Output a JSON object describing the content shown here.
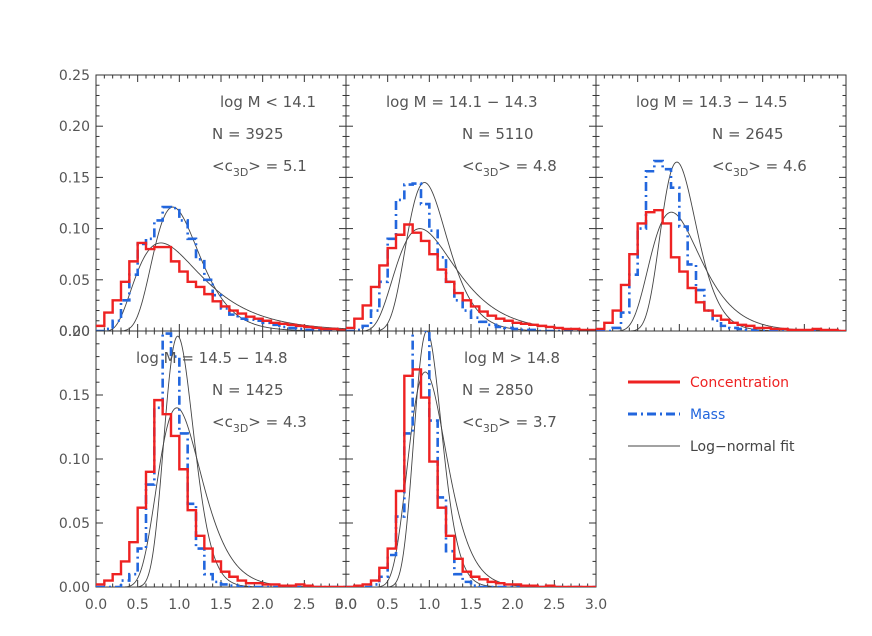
{
  "colors": {
    "concentration": "#ee2222",
    "mass": "#2266dd",
    "fit": "#444444",
    "axis": "#333333",
    "text": "#555555"
  },
  "legend": {
    "entries": [
      {
        "label": "Concentration",
        "color": "#ee2222",
        "style": "solid-thick"
      },
      {
        "label": "Mass",
        "color": "#2266dd",
        "style": "dash-dot"
      },
      {
        "label": "Log−normal fit",
        "color": "#444444",
        "style": "thin"
      }
    ]
  },
  "chart_data": [
    {
      "type": "line",
      "panel": "top-left",
      "annotations": [
        "log M < 14.1",
        "N = 3925",
        "5.1"
      ],
      "mean_c": "5.1",
      "xlim": [
        0,
        3
      ],
      "ylim": [
        0,
        0.25
      ],
      "x_bins": [
        0.1,
        0.2,
        0.3,
        0.4,
        0.5,
        0.6,
        0.7,
        0.8,
        0.9,
        1.0,
        1.1,
        1.2,
        1.3,
        1.4,
        1.5,
        1.6,
        1.7,
        1.8,
        1.9,
        2.0,
        2.1,
        2.2,
        2.3,
        2.4,
        2.5,
        2.6,
        2.7,
        2.8,
        2.9,
        3.0
      ],
      "series": [
        {
          "name": "Concentration",
          "values": [
            0.005,
            0.018,
            0.03,
            0.048,
            0.068,
            0.086,
            0.08,
            0.082,
            0.082,
            0.068,
            0.058,
            0.048,
            0.043,
            0.036,
            0.029,
            0.024,
            0.02,
            0.017,
            0.014,
            0.012,
            0.01,
            0.008,
            0.007,
            0.006,
            0.005,
            0.004,
            0.003,
            0.002,
            0.002,
            0.001
          ]
        },
        {
          "name": "Mass",
          "values": [
            0.0,
            0.002,
            0.01,
            0.03,
            0.055,
            0.085,
            0.09,
            0.108,
            0.121,
            0.12,
            0.108,
            0.09,
            0.07,
            0.05,
            0.035,
            0.022,
            0.016,
            0.012,
            0.011,
            0.01,
            0.008,
            0.006,
            0.004,
            0.003,
            0.002,
            0.001,
            0.001,
            0.0,
            0.0,
            0.0
          ]
        }
      ],
      "fits": [
        {
          "name": "Log-normal fit",
          "mu": -0.08,
          "sigma": 0.3,
          "amp": 0.121
        },
        {
          "name": "Log-normal fit",
          "mu": -0.25,
          "sigma": 0.5,
          "amp": 0.086
        }
      ]
    },
    {
      "type": "line",
      "panel": "top-middle",
      "annotations": [
        "log M = 14.1 − 14.3",
        "N = 5110",
        "4.8"
      ],
      "mean_c": "4.8",
      "xlim": [
        0,
        3
      ],
      "ylim": [
        0,
        0.25
      ],
      "x_bins": [
        0.1,
        0.2,
        0.3,
        0.4,
        0.5,
        0.6,
        0.7,
        0.8,
        0.9,
        1.0,
        1.1,
        1.2,
        1.3,
        1.4,
        1.5,
        1.6,
        1.7,
        1.8,
        1.9,
        2.0,
        2.1,
        2.2,
        2.3,
        2.4,
        2.5,
        2.6,
        2.7,
        2.8,
        2.9,
        3.0
      ],
      "series": [
        {
          "name": "Concentration",
          "values": [
            0.003,
            0.012,
            0.025,
            0.043,
            0.064,
            0.081,
            0.094,
            0.104,
            0.096,
            0.088,
            0.075,
            0.06,
            0.048,
            0.037,
            0.03,
            0.024,
            0.019,
            0.015,
            0.012,
            0.01,
            0.008,
            0.007,
            0.006,
            0.005,
            0.004,
            0.003,
            0.002,
            0.002,
            0.001,
            0.001
          ]
        },
        {
          "name": "Mass",
          "values": [
            0.0,
            0.001,
            0.005,
            0.02,
            0.048,
            0.09,
            0.128,
            0.143,
            0.144,
            0.124,
            0.098,
            0.072,
            0.048,
            0.03,
            0.02,
            0.013,
            0.009,
            0.006,
            0.004,
            0.003,
            0.002,
            0.001,
            0.001,
            0.0,
            0.0,
            0.0,
            0.0,
            0.0,
            0.0,
            0.0
          ]
        }
      ],
      "fits": [
        {
          "name": "Log-normal fit",
          "mu": -0.06,
          "sigma": 0.26,
          "amp": 0.145
        },
        {
          "name": "Log-normal fit",
          "mu": -0.12,
          "sigma": 0.4,
          "amp": 0.1
        }
      ]
    },
    {
      "type": "line",
      "panel": "top-right",
      "annotations": [
        "log M = 14.3 − 14.5",
        "N = 2645",
        "4.6"
      ],
      "mean_c": "4.6",
      "xlim": [
        0,
        3
      ],
      "ylim": [
        0,
        0.25
      ],
      "x_bins": [
        0.1,
        0.2,
        0.3,
        0.4,
        0.5,
        0.6,
        0.7,
        0.8,
        0.9,
        1.0,
        1.1,
        1.2,
        1.3,
        1.4,
        1.5,
        1.6,
        1.7,
        1.8,
        1.9,
        2.0,
        2.1,
        2.2,
        2.3,
        2.4,
        2.5,
        2.6,
        2.7,
        2.8,
        2.9,
        3.0
      ],
      "series": [
        {
          "name": "Concentration",
          "values": [
            0.002,
            0.008,
            0.02,
            0.045,
            0.075,
            0.105,
            0.116,
            0.118,
            0.105,
            0.072,
            0.058,
            0.042,
            0.028,
            0.02,
            0.015,
            0.011,
            0.008,
            0.006,
            0.005,
            0.003,
            0.003,
            0.002,
            0.002,
            0.001,
            0.001,
            0.001,
            0.002,
            0.001,
            0.001,
            0.0
          ]
        },
        {
          "name": "Mass",
          "values": [
            0.0,
            0.0,
            0.003,
            0.018,
            0.055,
            0.1,
            0.156,
            0.166,
            0.158,
            0.14,
            0.102,
            0.065,
            0.04,
            0.02,
            0.01,
            0.005,
            0.003,
            0.002,
            0.001,
            0.0,
            0.0,
            0.0,
            0.0,
            0.0,
            0.0,
            0.0,
            0.0,
            0.0,
            0.0,
            0.0
          ]
        }
      ],
      "fits": [
        {
          "name": "Log-normal fit",
          "mu": -0.03,
          "sigma": 0.22,
          "amp": 0.165
        },
        {
          "name": "Log-normal fit",
          "mu": -0.1,
          "sigma": 0.33,
          "amp": 0.116
        }
      ]
    },
    {
      "type": "line",
      "panel": "bottom-left",
      "annotations": [
        "log M = 14.5 − 14.8",
        "N = 1425",
        "4.3"
      ],
      "mean_c": "4.3",
      "xlim": [
        0,
        3
      ],
      "ylim": [
        0,
        0.2
      ],
      "x_bins": [
        0.1,
        0.2,
        0.3,
        0.4,
        0.5,
        0.6,
        0.7,
        0.8,
        0.9,
        1.0,
        1.1,
        1.2,
        1.3,
        1.4,
        1.5,
        1.6,
        1.7,
        1.8,
        1.9,
        2.0,
        2.1,
        2.2,
        2.3,
        2.4,
        2.5,
        2.6,
        2.7,
        2.8,
        2.9,
        3.0
      ],
      "series": [
        {
          "name": "Concentration",
          "values": [
            0.002,
            0.005,
            0.01,
            0.02,
            0.035,
            0.062,
            0.09,
            0.146,
            0.135,
            0.118,
            0.092,
            0.06,
            0.04,
            0.03,
            0.02,
            0.012,
            0.008,
            0.005,
            0.003,
            0.003,
            0.002,
            0.002,
            0.001,
            0.001,
            0.002,
            0.001,
            0.0,
            0.0,
            0.0,
            0.0
          ]
        },
        {
          "name": "Mass",
          "values": [
            0.0,
            0.0,
            0.0,
            0.005,
            0.01,
            0.03,
            0.08,
            0.14,
            0.198,
            0.18,
            0.12,
            0.065,
            0.03,
            0.01,
            0.004,
            0.002,
            0.001,
            0.0,
            0.0,
            0.0,
            0.0,
            0.0,
            0.0,
            0.0,
            0.0,
            0.0,
            0.0,
            0.0,
            0.0,
            0.0
          ]
        }
      ],
      "fits": [
        {
          "name": "Log-normal fit",
          "mu": -0.02,
          "sigma": 0.18,
          "amp": 0.196
        },
        {
          "name": "Log-normal fit",
          "mu": -0.03,
          "sigma": 0.27,
          "amp": 0.14
        }
      ]
    },
    {
      "type": "line",
      "panel": "bottom-middle",
      "annotations": [
        "log M > 14.8",
        "N = 2850",
        "3.7"
      ],
      "mean_c": "3.7",
      "xlim": [
        0,
        3
      ],
      "ylim": [
        0,
        0.2
      ],
      "x_bins": [
        0.1,
        0.2,
        0.3,
        0.4,
        0.5,
        0.6,
        0.7,
        0.8,
        0.9,
        1.0,
        1.1,
        1.2,
        1.3,
        1.4,
        1.5,
        1.6,
        1.7,
        1.8,
        1.9,
        2.0,
        2.1,
        2.2,
        2.3,
        2.4,
        2.5,
        2.6,
        2.7,
        2.8,
        2.9,
        3.0
      ],
      "series": [
        {
          "name": "Concentration",
          "values": [
            0.0,
            0.001,
            0.002,
            0.005,
            0.015,
            0.03,
            0.075,
            0.165,
            0.17,
            0.148,
            0.098,
            0.062,
            0.04,
            0.022,
            0.012,
            0.008,
            0.006,
            0.004,
            0.003,
            0.002,
            0.002,
            0.001,
            0.001,
            0.0,
            0.001,
            0.0,
            0.0,
            0.0,
            0.0,
            0.0
          ]
        },
        {
          "name": "Mass",
          "values": [
            0.0,
            0.0,
            0.0,
            0.002,
            0.008,
            0.025,
            0.055,
            0.12,
            0.208,
            0.2,
            0.13,
            0.07,
            0.028,
            0.01,
            0.004,
            0.001,
            0.0,
            0.0,
            0.0,
            0.0,
            0.0,
            0.0,
            0.0,
            0.0,
            0.0,
            0.0,
            0.0,
            0.0,
            0.0,
            0.0
          ]
        }
      ],
      "fits": [
        {
          "name": "Log-normal fit",
          "mu": -0.03,
          "sigma": 0.17,
          "amp": 0.2
        },
        {
          "name": "Log-normal fit",
          "mu": -0.05,
          "sigma": 0.24,
          "amp": 0.168
        }
      ]
    }
  ]
}
